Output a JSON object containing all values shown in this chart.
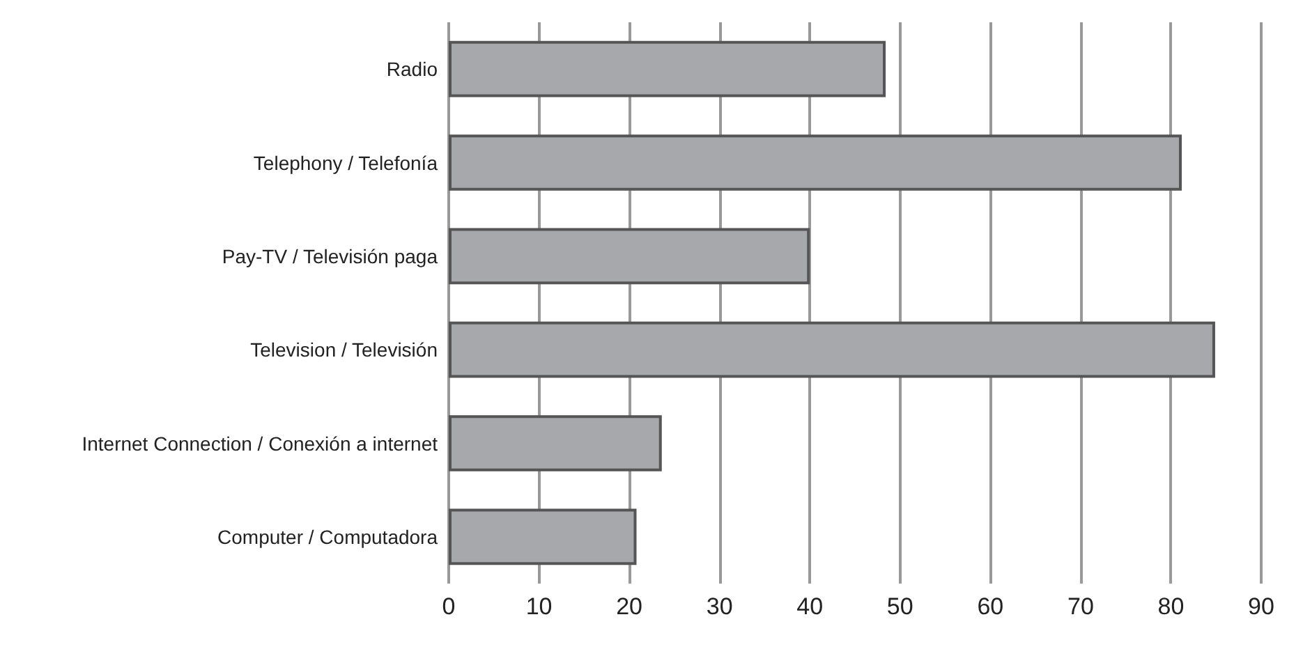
{
  "chart_data": {
    "type": "bar",
    "orientation": "horizontal",
    "categories": [
      "Radio",
      "Telephony / Telefonía",
      "Pay-TV / Televisión paga",
      "Television / Televisión",
      "Internet Connection / Conexión a internet",
      "Computer / Computadora"
    ],
    "values": [
      48.4,
      81.2,
      40,
      84.9,
      23.6,
      20.8
    ],
    "color": "#a7a8ab",
    "xlim": [
      0,
      90
    ],
    "xticks": [
      0,
      10,
      20,
      30,
      40,
      50,
      60,
      70,
      80,
      90
    ],
    "grid": "x"
  }
}
